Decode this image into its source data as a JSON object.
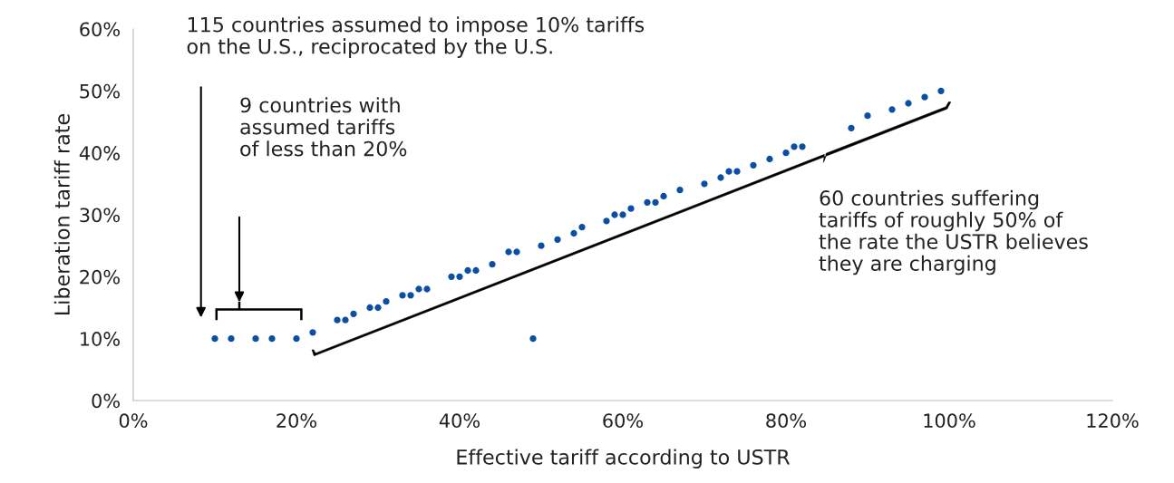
{
  "chart_data": {
    "type": "scatter",
    "xlabel": "Effective tariff according to USTR",
    "ylabel": "Liberation tariff rate",
    "x": [
      10,
      12,
      15,
      17,
      20,
      22,
      25,
      26,
      27,
      29,
      30,
      31,
      33,
      34,
      35,
      36,
      39,
      40,
      41,
      42,
      44,
      46,
      47,
      49,
      50,
      52,
      54,
      55,
      58,
      59,
      60,
      61,
      63,
      64,
      65,
      67,
      70,
      72,
      73,
      74,
      76,
      78,
      80,
      81,
      82,
      88,
      90,
      93,
      95,
      97,
      99
    ],
    "series": [
      {
        "color": "#0b4fa3",
        "values": [
          10,
          10,
          10,
          10,
          10,
          11,
          13,
          13,
          14,
          15,
          15,
          16,
          17,
          17,
          18,
          18,
          20,
          20,
          21,
          21,
          22,
          24,
          24,
          10,
          25,
          26,
          27,
          28,
          29,
          30,
          30,
          31,
          32,
          32,
          33,
          34,
          35,
          36,
          37,
          37,
          38,
          39,
          40,
          41,
          41,
          44,
          46,
          47,
          48,
          49,
          50
        ]
      }
    ],
    "xlim": [
      0,
      120
    ],
    "xticks": [
      {
        "value": 0,
        "label": "0%"
      },
      {
        "value": 20,
        "label": "20%"
      },
      {
        "value": 40,
        "label": "40%"
      },
      {
        "value": 60,
        "label": "60%"
      },
      {
        "value": 80,
        "label": "80%"
      },
      {
        "value": 100,
        "label": "100%"
      },
      {
        "value": 120,
        "label": "120%"
      }
    ],
    "ylim": [
      0,
      60
    ],
    "yticks": [
      {
        "value": 0,
        "label": "0%"
      },
      {
        "value": 10,
        "label": "10%"
      },
      {
        "value": 20,
        "label": "20%"
      },
      {
        "value": 30,
        "label": "30%"
      },
      {
        "value": 40,
        "label": "40%"
      },
      {
        "value": 50,
        "label": "50%"
      },
      {
        "value": 60,
        "label": "60%"
      }
    ],
    "marker": "circle",
    "grid": false,
    "annotations": [
      "115 countries assumed to impose 10% tariffs\non the U.S., reciprocated by the U.S.",
      "9 countries with\nassumed tariffs\nof less than 20%",
      "60 countries suffering\ntariffs of roughly 50% of\nthe rate the USTR believes\nthey are charging"
    ]
  }
}
